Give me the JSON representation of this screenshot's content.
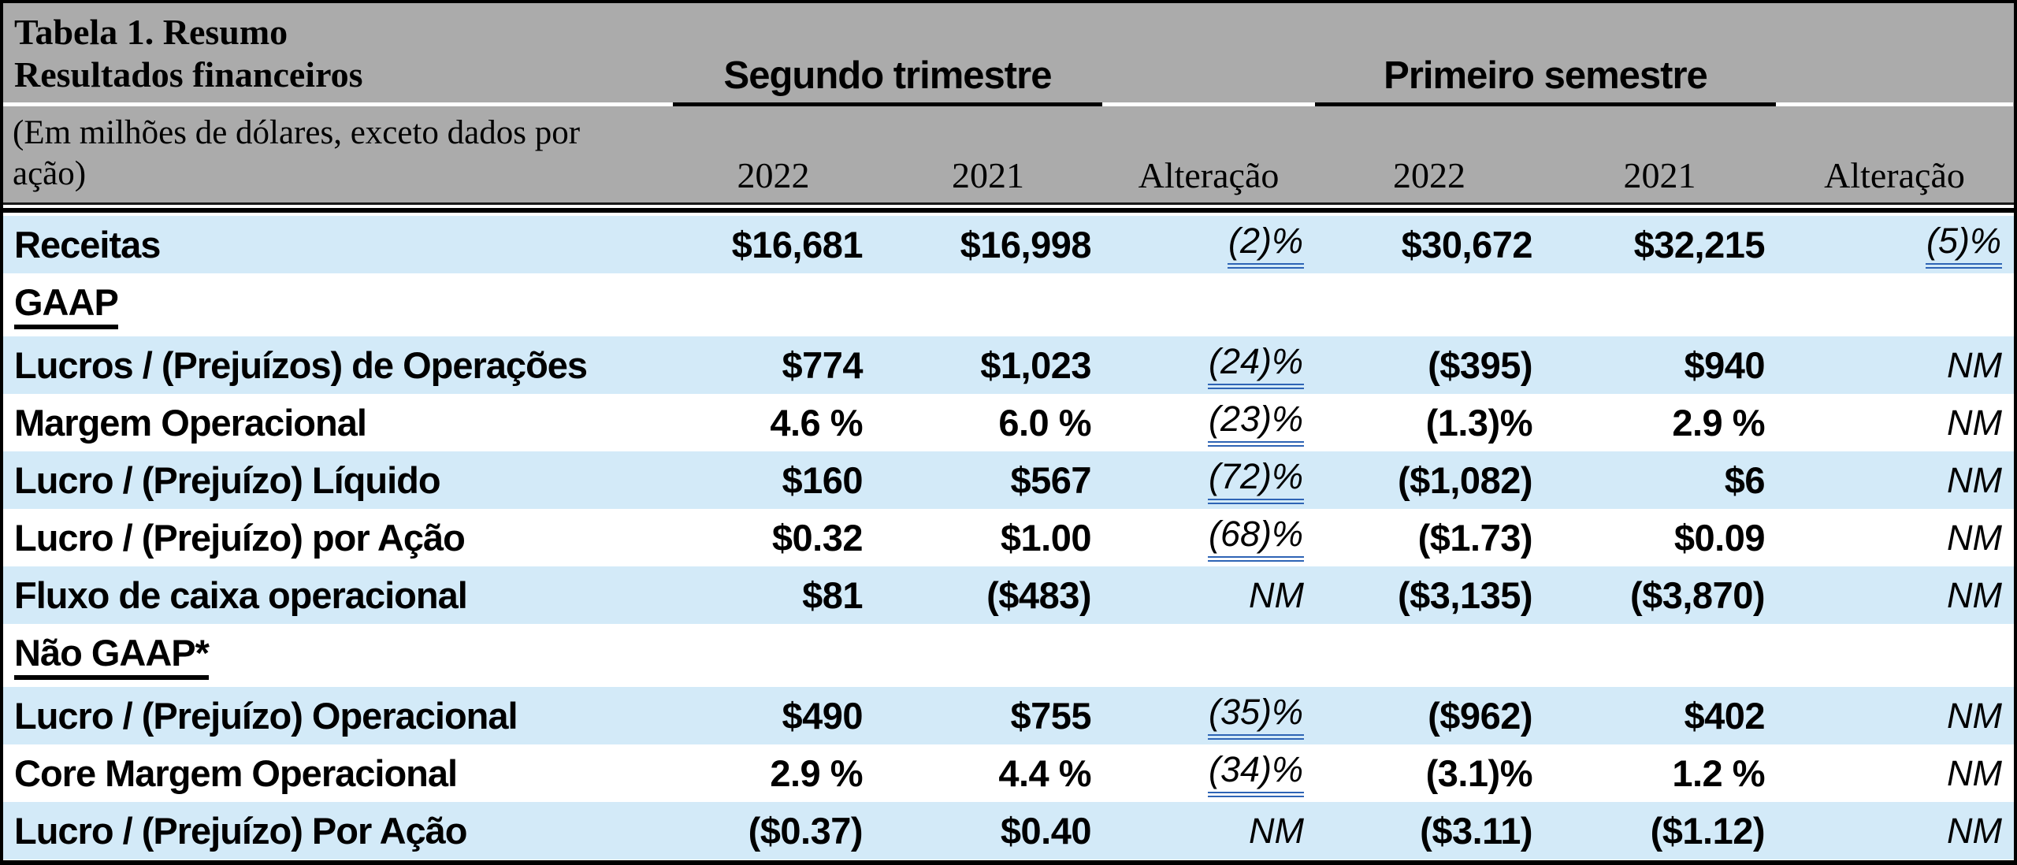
{
  "table": {
    "title_line1": "Tabela 1. Resumo",
    "title_line2": "Resultados financeiros",
    "subtitle": "(Em milhões de dólares, exceto dados por ação)",
    "groups": [
      {
        "label": "Segundo trimestre"
      },
      {
        "label": "Primeiro semestre"
      }
    ],
    "columns": [
      "2022",
      "2021",
      "Alteração",
      "2022",
      "2021",
      "Alteração"
    ],
    "column_keys": [
      "q2-2022",
      "q2-2021",
      "q2-change",
      "h1-2022",
      "h1-2021",
      "h1-change"
    ],
    "rows": [
      {
        "label": "Receitas",
        "section": false,
        "shaded": true,
        "values": [
          "$16,681",
          "$16,998",
          "(2)%",
          "$30,672",
          "$32,215",
          "(5)%"
        ],
        "styles": [
          "b",
          "b",
          "u",
          "b",
          "b",
          "u"
        ]
      },
      {
        "label": "GAAP",
        "section": true,
        "shaded": false,
        "values": [],
        "styles": []
      },
      {
        "label": "Lucros / (Prejuízos) de Operações",
        "section": false,
        "shaded": true,
        "values": [
          "$774",
          "$1,023",
          "(24)%",
          "($395)",
          "$940",
          "NM"
        ],
        "styles": [
          "b",
          "b",
          "u",
          "b",
          "b",
          "i"
        ]
      },
      {
        "label": "Margem Operacional",
        "section": false,
        "shaded": false,
        "values": [
          "4.6 %",
          "6.0 %",
          "(23)%",
          "(1.3)%",
          "2.9 %",
          "NM"
        ],
        "styles": [
          "b",
          "b",
          "u",
          "b",
          "b",
          "i"
        ]
      },
      {
        "label": "Lucro / (Prejuízo) Líquido",
        "section": false,
        "shaded": true,
        "values": [
          "$160",
          "$567",
          "(72)%",
          "($1,082)",
          "$6",
          "NM"
        ],
        "styles": [
          "b",
          "b",
          "u",
          "b",
          "b",
          "i"
        ]
      },
      {
        "label": "Lucro / (Prejuízo) por Ação",
        "section": false,
        "shaded": false,
        "values": [
          "$0.32",
          "$1.00",
          "(68)%",
          "($1.73)",
          "$0.09",
          "NM"
        ],
        "styles": [
          "b",
          "b",
          "u",
          "b",
          "b",
          "i"
        ]
      },
      {
        "label": "Fluxo de caixa operacional",
        "section": false,
        "shaded": true,
        "values": [
          "$81",
          "($483)",
          "NM",
          "($3,135)",
          "($3,870)",
          "NM"
        ],
        "styles": [
          "b",
          "b",
          "i",
          "b",
          "b",
          "i"
        ]
      },
      {
        "label": "Não GAAP*",
        "section": true,
        "shaded": false,
        "values": [],
        "styles": []
      },
      {
        "label": "Lucro / (Prejuízo) Operacional",
        "section": false,
        "shaded": true,
        "values": [
          "$490",
          "$755",
          "(35)%",
          "($962)",
          "$402",
          "NM"
        ],
        "styles": [
          "b",
          "b",
          "u",
          "b",
          "b",
          "i"
        ]
      },
      {
        "label": "Core Margem Operacional",
        "section": false,
        "shaded": false,
        "values": [
          "2.9 %",
          "4.4 %",
          "(34)%",
          "(3.1)%",
          "1.2 %",
          "NM"
        ],
        "styles": [
          "b",
          "b",
          "u",
          "b",
          "b",
          "i"
        ]
      },
      {
        "label": "Lucro / (Prejuízo) Por Ação",
        "section": false,
        "shaded": true,
        "values": [
          "($0.37)",
          "$0.40",
          "NM",
          "($3.11)",
          "($1.12)",
          "NM"
        ],
        "styles": [
          "b",
          "b",
          "i",
          "b",
          "b",
          "i"
        ]
      }
    ]
  },
  "colors": {
    "header_background": "#ababab",
    "stripe_blue": "#d3eaf8",
    "change_underline_blue": "#2e64b5",
    "border_black": "#000000"
  }
}
